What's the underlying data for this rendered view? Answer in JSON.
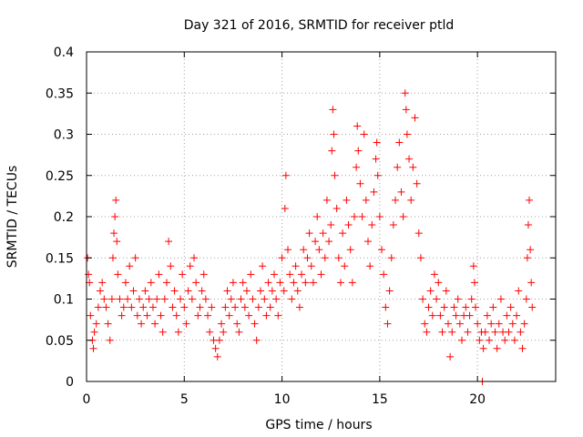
{
  "chart_data": {
    "type": "scatter",
    "title": "Day 321 of 2016, SRMTID for receiver ptld",
    "xlabel": "GPS time / hours",
    "ylabel": "SRMTID / TECUs",
    "xlim": [
      0,
      24
    ],
    "ylim": [
      0,
      0.4
    ],
    "x_ticks": [
      0,
      5,
      10,
      15,
      20
    ],
    "x_tick_labels": [
      "0",
      "5",
      "10",
      "15",
      "20"
    ],
    "y_ticks": [
      0,
      0.05,
      0.1,
      0.15,
      0.2,
      0.25,
      0.3,
      0.35,
      0.4
    ],
    "y_tick_labels": [
      "0",
      "0.05",
      "0.1",
      "0.15",
      "0.2",
      "0.25",
      "0.3",
      "0.35",
      "0.4"
    ],
    "grid": true,
    "marker": "plus",
    "color": "#ff0000",
    "series": [
      {
        "name": "SRMTID",
        "points": [
          [
            0.05,
            0.15
          ],
          [
            0.1,
            0.13
          ],
          [
            0.15,
            0.12
          ],
          [
            0.2,
            0.08
          ],
          [
            0.3,
            0.05
          ],
          [
            0.35,
            0.04
          ],
          [
            0.4,
            0.06
          ],
          [
            0.5,
            0.07
          ],
          [
            0.6,
            0.09
          ],
          [
            0.7,
            0.11
          ],
          [
            0.8,
            0.12
          ],
          [
            0.9,
            0.1
          ],
          [
            1.0,
            0.09
          ],
          [
            1.1,
            0.07
          ],
          [
            1.2,
            0.05
          ],
          [
            1.3,
            0.1
          ],
          [
            1.35,
            0.15
          ],
          [
            1.4,
            0.18
          ],
          [
            1.45,
            0.2
          ],
          [
            1.5,
            0.22
          ],
          [
            1.55,
            0.17
          ],
          [
            1.6,
            0.13
          ],
          [
            1.7,
            0.1
          ],
          [
            1.8,
            0.08
          ],
          [
            1.9,
            0.09
          ],
          [
            2.0,
            0.12
          ],
          [
            2.1,
            0.1
          ],
          [
            2.2,
            0.14
          ],
          [
            2.3,
            0.09
          ],
          [
            2.4,
            0.11
          ],
          [
            2.5,
            0.15
          ],
          [
            2.6,
            0.08
          ],
          [
            2.7,
            0.1
          ],
          [
            2.8,
            0.07
          ],
          [
            2.9,
            0.09
          ],
          [
            3.0,
            0.11
          ],
          [
            3.1,
            0.08
          ],
          [
            3.2,
            0.1
          ],
          [
            3.3,
            0.12
          ],
          [
            3.4,
            0.09
          ],
          [
            3.5,
            0.07
          ],
          [
            3.6,
            0.1
          ],
          [
            3.7,
            0.13
          ],
          [
            3.8,
            0.08
          ],
          [
            3.9,
            0.06
          ],
          [
            4.0,
            0.1
          ],
          [
            4.1,
            0.12
          ],
          [
            4.2,
            0.17
          ],
          [
            4.3,
            0.14
          ],
          [
            4.4,
            0.09
          ],
          [
            4.5,
            0.11
          ],
          [
            4.6,
            0.08
          ],
          [
            4.7,
            0.06
          ],
          [
            4.8,
            0.1
          ],
          [
            4.9,
            0.13
          ],
          [
            5.0,
            0.09
          ],
          [
            5.1,
            0.07
          ],
          [
            5.2,
            0.11
          ],
          [
            5.3,
            0.14
          ],
          [
            5.4,
            0.1
          ],
          [
            5.5,
            0.15
          ],
          [
            5.6,
            0.12
          ],
          [
            5.7,
            0.08
          ],
          [
            5.8,
            0.09
          ],
          [
            5.9,
            0.11
          ],
          [
            6.0,
            0.13
          ],
          [
            6.1,
            0.1
          ],
          [
            6.2,
            0.08
          ],
          [
            6.3,
            0.06
          ],
          [
            6.4,
            0.09
          ],
          [
            6.5,
            0.05
          ],
          [
            6.6,
            0.04
          ],
          [
            6.7,
            0.03
          ],
          [
            6.8,
            0.05
          ],
          [
            6.9,
            0.07
          ],
          [
            7.0,
            0.06
          ],
          [
            7.1,
            0.09
          ],
          [
            7.2,
            0.11
          ],
          [
            7.3,
            0.08
          ],
          [
            7.4,
            0.1
          ],
          [
            7.5,
            0.12
          ],
          [
            7.6,
            0.09
          ],
          [
            7.7,
            0.07
          ],
          [
            7.8,
            0.06
          ],
          [
            7.9,
            0.1
          ],
          [
            8.0,
            0.12
          ],
          [
            8.1,
            0.09
          ],
          [
            8.2,
            0.11
          ],
          [
            8.3,
            0.08
          ],
          [
            8.4,
            0.13
          ],
          [
            8.5,
            0.1
          ],
          [
            8.6,
            0.07
          ],
          [
            8.7,
            0.05
          ],
          [
            8.8,
            0.09
          ],
          [
            8.9,
            0.11
          ],
          [
            9.0,
            0.14
          ],
          [
            9.1,
            0.1
          ],
          [
            9.2,
            0.08
          ],
          [
            9.3,
            0.12
          ],
          [
            9.4,
            0.09
          ],
          [
            9.5,
            0.11
          ],
          [
            9.6,
            0.13
          ],
          [
            9.7,
            0.1
          ],
          [
            9.8,
            0.08
          ],
          [
            9.9,
            0.12
          ],
          [
            10.0,
            0.15
          ],
          [
            10.1,
            0.11
          ],
          [
            10.15,
            0.21
          ],
          [
            10.2,
            0.25
          ],
          [
            10.3,
            0.16
          ],
          [
            10.4,
            0.13
          ],
          [
            10.5,
            0.1
          ],
          [
            10.6,
            0.12
          ],
          [
            10.7,
            0.14
          ],
          [
            10.8,
            0.11
          ],
          [
            10.9,
            0.09
          ],
          [
            11.0,
            0.13
          ],
          [
            11.1,
            0.16
          ],
          [
            11.2,
            0.12
          ],
          [
            11.3,
            0.15
          ],
          [
            11.4,
            0.18
          ],
          [
            11.5,
            0.14
          ],
          [
            11.6,
            0.12
          ],
          [
            11.7,
            0.17
          ],
          [
            11.8,
            0.2
          ],
          [
            11.9,
            0.16
          ],
          [
            12.0,
            0.13
          ],
          [
            12.1,
            0.18
          ],
          [
            12.2,
            0.15
          ],
          [
            12.3,
            0.22
          ],
          [
            12.4,
            0.17
          ],
          [
            12.5,
            0.19
          ],
          [
            12.55,
            0.28
          ],
          [
            12.6,
            0.33
          ],
          [
            12.65,
            0.3
          ],
          [
            12.7,
            0.25
          ],
          [
            12.8,
            0.21
          ],
          [
            12.9,
            0.15
          ],
          [
            13.0,
            0.12
          ],
          [
            13.1,
            0.18
          ],
          [
            13.2,
            0.14
          ],
          [
            13.3,
            0.22
          ],
          [
            13.4,
            0.19
          ],
          [
            13.5,
            0.16
          ],
          [
            13.6,
            0.12
          ],
          [
            13.7,
            0.2
          ],
          [
            13.8,
            0.26
          ],
          [
            13.85,
            0.31
          ],
          [
            13.9,
            0.28
          ],
          [
            14.0,
            0.24
          ],
          [
            14.1,
            0.2
          ],
          [
            14.2,
            0.3
          ],
          [
            14.3,
            0.22
          ],
          [
            14.4,
            0.17
          ],
          [
            14.5,
            0.14
          ],
          [
            14.6,
            0.19
          ],
          [
            14.7,
            0.23
          ],
          [
            14.8,
            0.27
          ],
          [
            14.85,
            0.29
          ],
          [
            14.9,
            0.25
          ],
          [
            15.0,
            0.2
          ],
          [
            15.1,
            0.16
          ],
          [
            15.2,
            0.13
          ],
          [
            15.3,
            0.09
          ],
          [
            15.4,
            0.07
          ],
          [
            15.5,
            0.11
          ],
          [
            15.6,
            0.15
          ],
          [
            15.7,
            0.19
          ],
          [
            15.8,
            0.22
          ],
          [
            15.9,
            0.26
          ],
          [
            16.0,
            0.29
          ],
          [
            16.1,
            0.23
          ],
          [
            16.2,
            0.2
          ],
          [
            16.3,
            0.35
          ],
          [
            16.35,
            0.33
          ],
          [
            16.4,
            0.3
          ],
          [
            16.5,
            0.27
          ],
          [
            16.6,
            0.22
          ],
          [
            16.7,
            0.26
          ],
          [
            16.8,
            0.32
          ],
          [
            16.9,
            0.24
          ],
          [
            17.0,
            0.18
          ],
          [
            17.1,
            0.15
          ],
          [
            17.2,
            0.1
          ],
          [
            17.3,
            0.07
          ],
          [
            17.4,
            0.06
          ],
          [
            17.5,
            0.09
          ],
          [
            17.6,
            0.11
          ],
          [
            17.7,
            0.08
          ],
          [
            17.8,
            0.13
          ],
          [
            17.9,
            0.1
          ],
          [
            18.0,
            0.12
          ],
          [
            18.1,
            0.08
          ],
          [
            18.2,
            0.06
          ],
          [
            18.3,
            0.09
          ],
          [
            18.4,
            0.11
          ],
          [
            18.5,
            0.07
          ],
          [
            18.6,
            0.03
          ],
          [
            18.7,
            0.06
          ],
          [
            18.8,
            0.09
          ],
          [
            18.9,
            0.08
          ],
          [
            19.0,
            0.1
          ],
          [
            19.1,
            0.07
          ],
          [
            19.2,
            0.05
          ],
          [
            19.3,
            0.08
          ],
          [
            19.4,
            0.09
          ],
          [
            19.5,
            0.06
          ],
          [
            19.6,
            0.08
          ],
          [
            19.7,
            0.1
          ],
          [
            19.8,
            0.14
          ],
          [
            19.85,
            0.12
          ],
          [
            19.9,
            0.09
          ],
          [
            20.0,
            0.07
          ],
          [
            20.1,
            0.05
          ],
          [
            20.2,
            0.06
          ],
          [
            20.25,
            0.0
          ],
          [
            20.3,
            0.04
          ],
          [
            20.4,
            0.06
          ],
          [
            20.5,
            0.08
          ],
          [
            20.6,
            0.05
          ],
          [
            20.7,
            0.07
          ],
          [
            20.8,
            0.09
          ],
          [
            20.9,
            0.06
          ],
          [
            21.0,
            0.04
          ],
          [
            21.1,
            0.07
          ],
          [
            21.2,
            0.1
          ],
          [
            21.3,
            0.06
          ],
          [
            21.4,
            0.05
          ],
          [
            21.5,
            0.08
          ],
          [
            21.6,
            0.06
          ],
          [
            21.7,
            0.09
          ],
          [
            21.8,
            0.07
          ],
          [
            21.9,
            0.05
          ],
          [
            22.0,
            0.08
          ],
          [
            22.1,
            0.11
          ],
          [
            22.2,
            0.06
          ],
          [
            22.3,
            0.04
          ],
          [
            22.4,
            0.07
          ],
          [
            22.5,
            0.1
          ],
          [
            22.55,
            0.15
          ],
          [
            22.6,
            0.19
          ],
          [
            22.65,
            0.22
          ],
          [
            22.7,
            0.16
          ],
          [
            22.75,
            0.12
          ],
          [
            22.8,
            0.09
          ]
        ]
      }
    ]
  }
}
